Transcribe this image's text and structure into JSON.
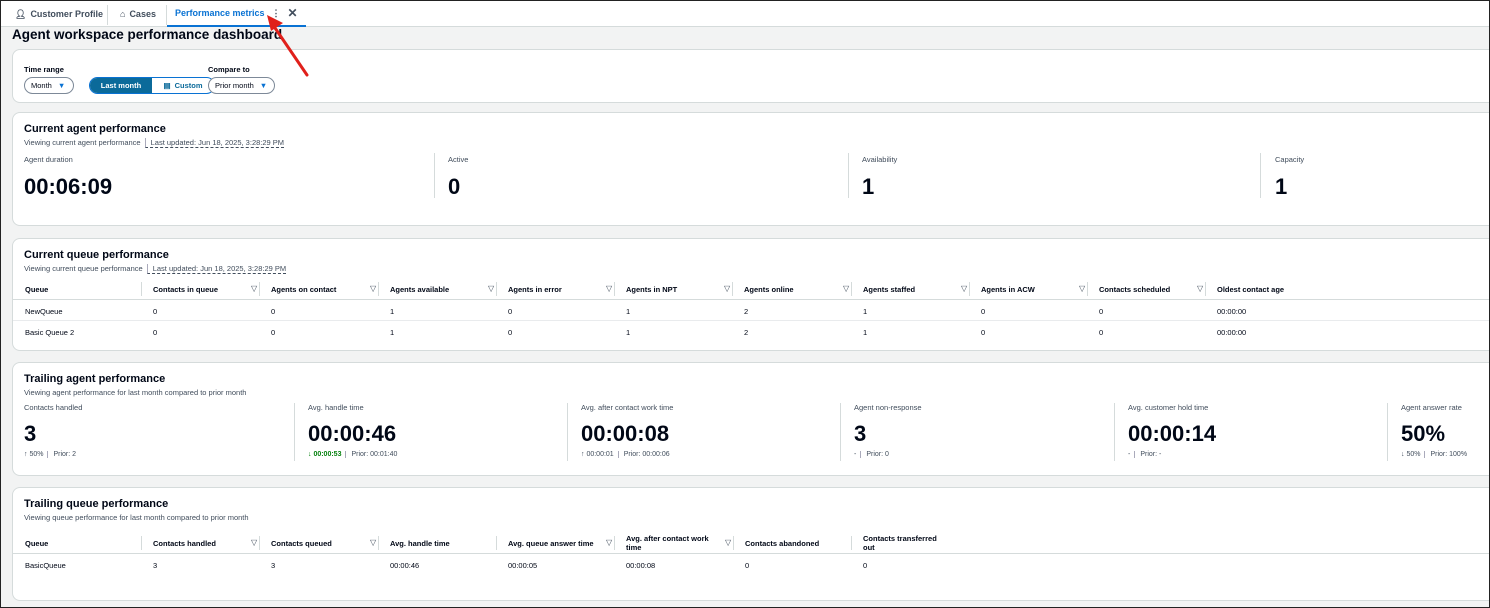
{
  "tabs": [
    {
      "label": "Customer Profile",
      "icon": "user-icon"
    },
    {
      "label": "Cases",
      "icon": "briefcase-icon"
    },
    {
      "label": "Performance metrics",
      "active": true
    }
  ],
  "page_title": "Agent workspace performance dashboard",
  "filters": {
    "time_range_label": "Time range",
    "time_range_value": "Month",
    "segments": [
      "Last month",
      "Custom"
    ],
    "selected_segment": "Last month",
    "compare_label": "Compare to",
    "compare_value": "Prior month"
  },
  "current_agent": {
    "title": "Current agent performance",
    "subtitle": "Viewing current agent performance",
    "last_updated": "Last updated: Jun 18, 2025, 3:28:29 PM",
    "metrics": [
      {
        "label": "Agent duration",
        "value": "00:06:09"
      },
      {
        "label": "Active",
        "value": "0"
      },
      {
        "label": "Availability",
        "value": "1"
      },
      {
        "label": "Capacity",
        "value": "1"
      }
    ]
  },
  "current_queue": {
    "title": "Current queue performance",
    "subtitle": "Viewing current queue performance",
    "last_updated": "Last updated: Jun 18, 2025, 3:28:29 PM",
    "columns": [
      "Queue",
      "Contacts in queue",
      "Agents on contact",
      "Agents available",
      "Agents in error",
      "Agents in NPT",
      "Agents online",
      "Agents staffed",
      "Agents in ACW",
      "Contacts scheduled",
      "Oldest contact age"
    ],
    "rows": [
      [
        "NewQueue",
        "0",
        "0",
        "1",
        "0",
        "1",
        "2",
        "1",
        "0",
        "0",
        "00:00:00"
      ],
      [
        "Basic Queue 2",
        "0",
        "0",
        "1",
        "0",
        "1",
        "2",
        "1",
        "0",
        "0",
        "00:00:00"
      ]
    ]
  },
  "trailing_agent": {
    "title": "Trailing agent performance",
    "subtitle": "Viewing agent performance for last month compared to prior month",
    "metrics": [
      {
        "label": "Contacts handled",
        "value": "3",
        "change": "↑ 50%",
        "prior": "Prior: 2",
        "good": false
      },
      {
        "label": "Avg. handle time",
        "value": "00:00:46",
        "change": "↓ 00:00:53",
        "prior": "Prior: 00:01:40",
        "good": true
      },
      {
        "label": "Avg. after contact work time",
        "value": "00:00:08",
        "change": "↑ 00:00:01",
        "prior": "Prior: 00:00:06",
        "good": false
      },
      {
        "label": "Agent non-response",
        "value": "3",
        "change": "-",
        "prior": "Prior: 0",
        "good": false
      },
      {
        "label": "Avg. customer hold time",
        "value": "00:00:14",
        "change": "-",
        "prior": "Prior: -",
        "good": false
      },
      {
        "label": "Agent answer rate",
        "value": "50%",
        "change": "↓ 50%",
        "prior": "Prior: 100%",
        "good": false
      }
    ]
  },
  "trailing_queue": {
    "title": "Trailing queue performance",
    "subtitle": "Viewing queue performance for last month compared to prior month",
    "columns": [
      "Queue",
      "Contacts handled",
      "Contacts queued",
      "Avg. handle time",
      "Avg. queue answer time",
      "Avg. after contact work time",
      "Contacts abandoned",
      "Contacts transferred out"
    ],
    "rows": [
      [
        "BasicQueue",
        "3",
        "3",
        "00:00:46",
        "00:00:05",
        "00:00:08",
        "0",
        "0"
      ]
    ]
  },
  "colors": {
    "accent": "#0972d3",
    "segment_selected": "#006ce0",
    "good": "#037f0c",
    "annotation_arrow": "#e0201b"
  }
}
